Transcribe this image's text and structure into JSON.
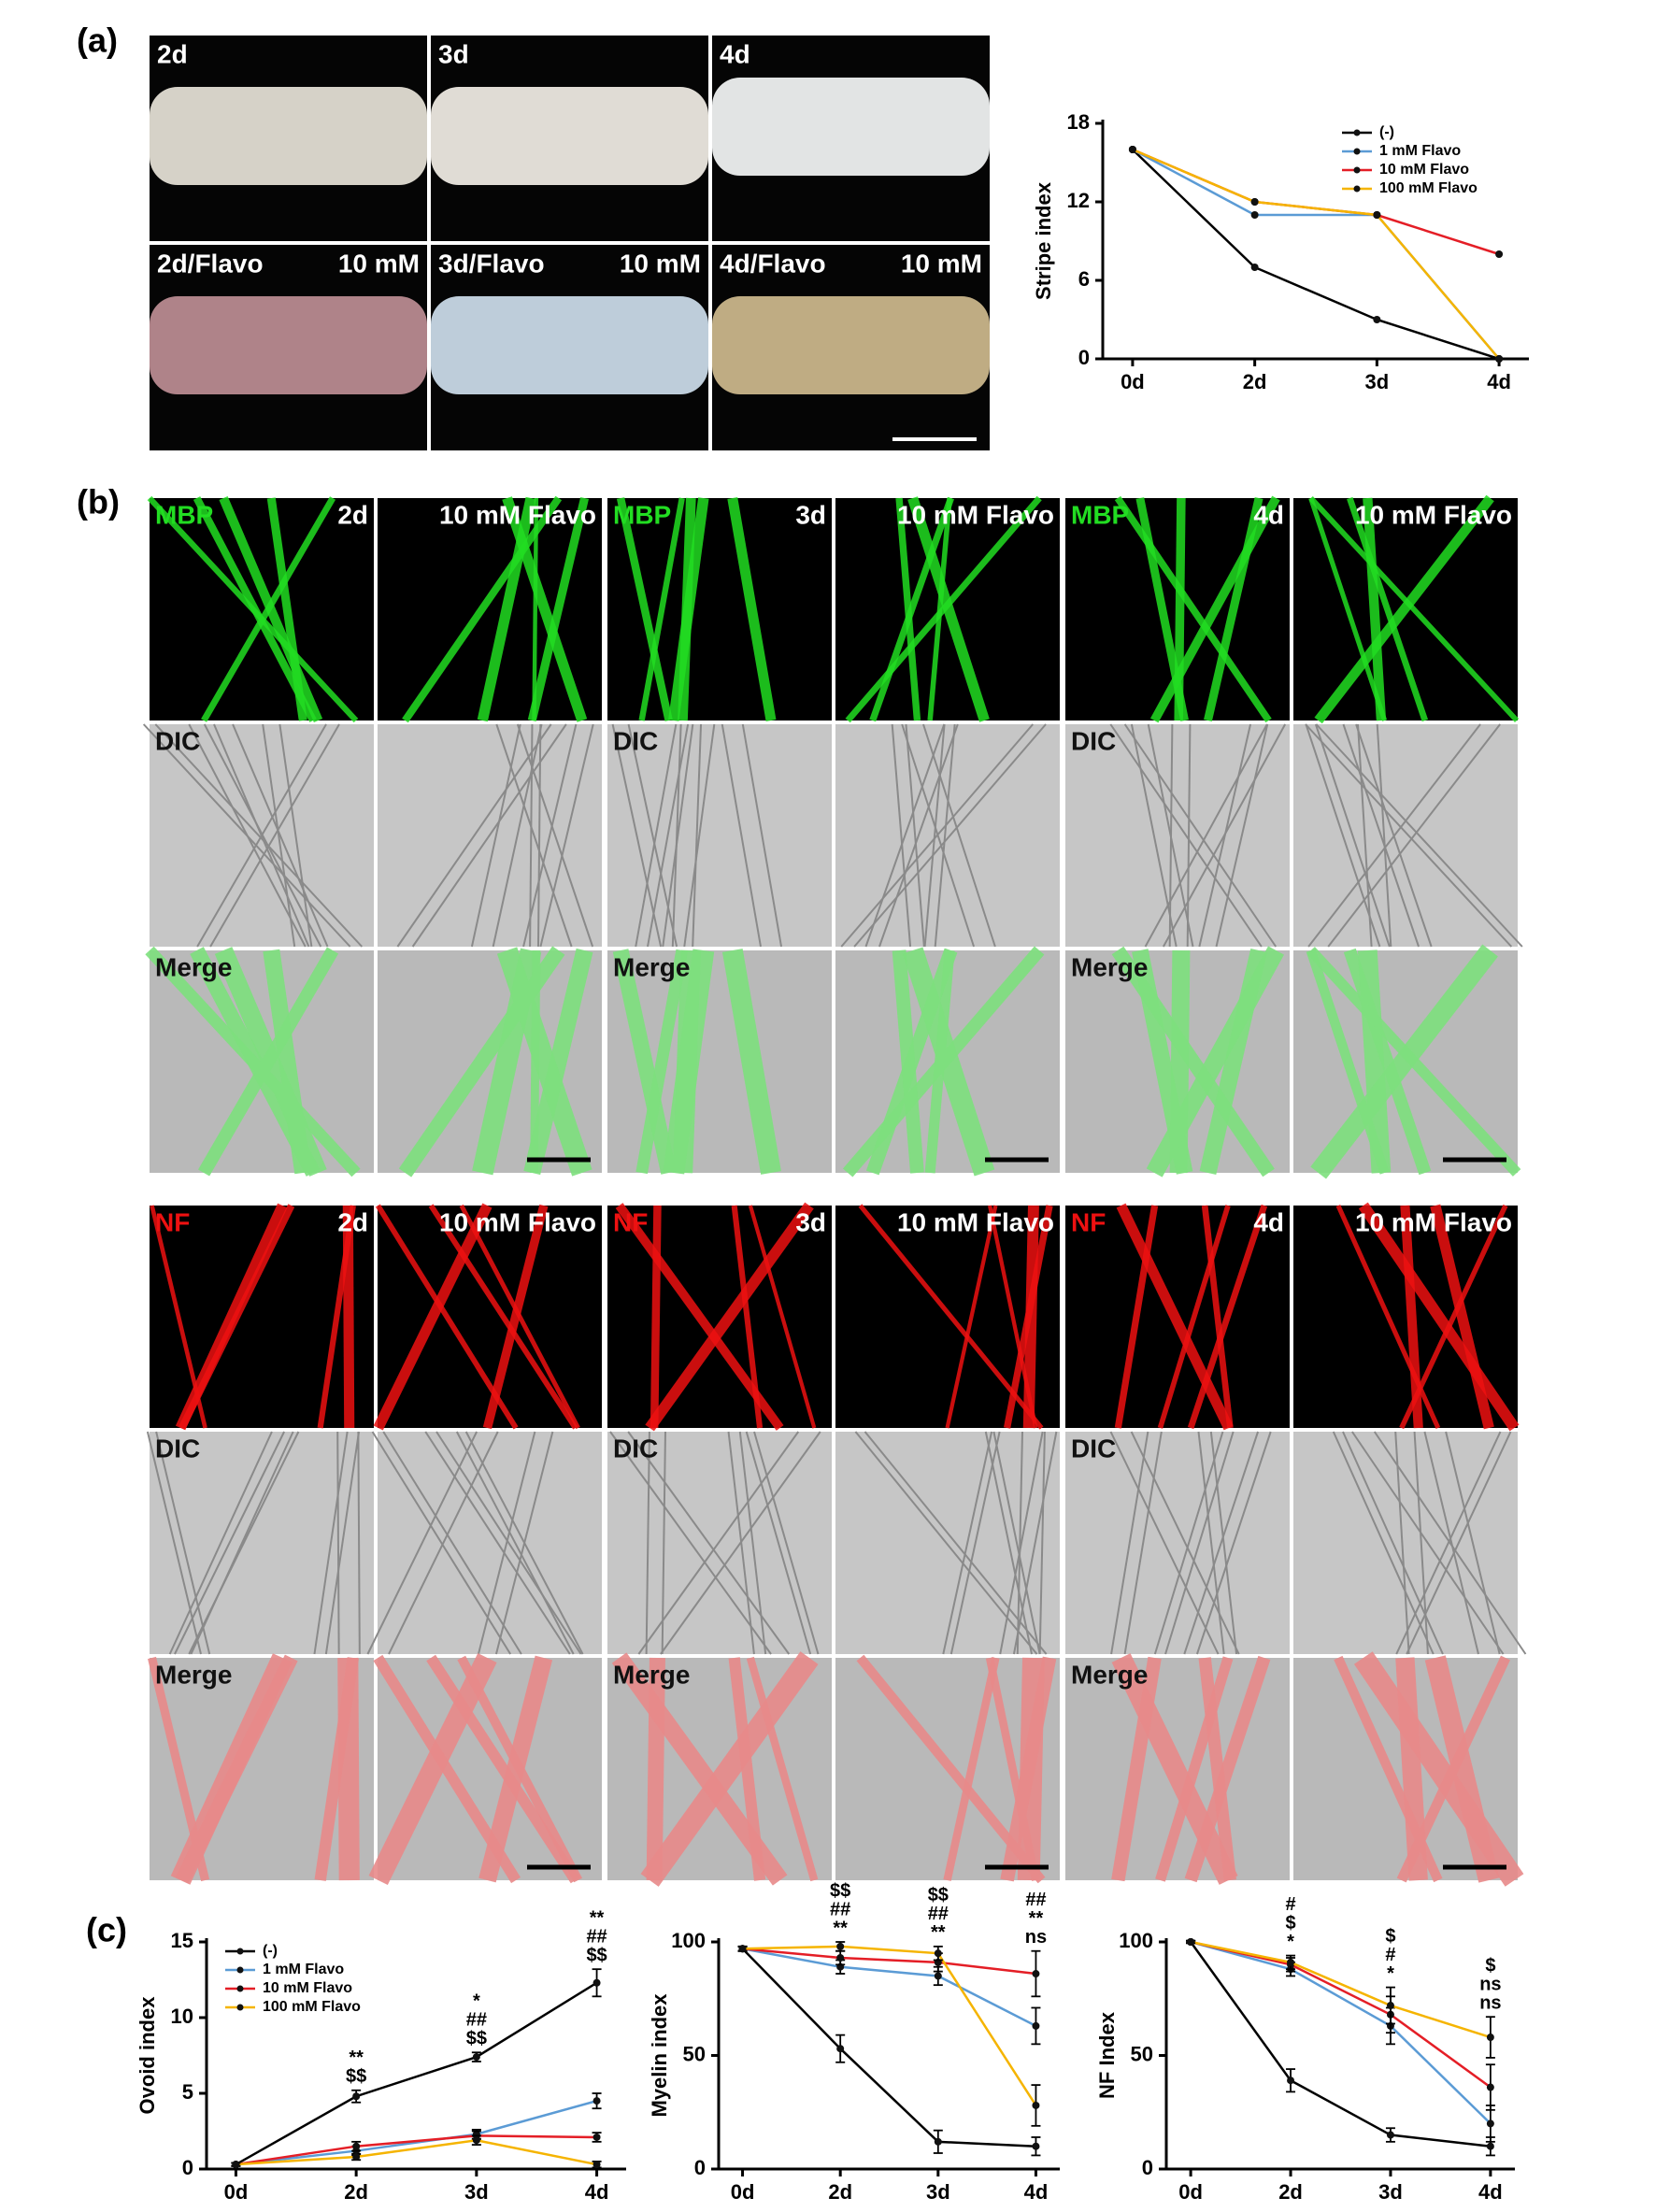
{
  "figure": {
    "panel_labels": [
      "(a)",
      "(b)",
      "(c)"
    ],
    "panel_a": {
      "days": [
        "2d",
        "3d",
        "4d"
      ],
      "flavo_labels": [
        "2d/Flavo",
        "3d/Flavo",
        "4d/Flavo"
      ],
      "dose": "10 mM"
    },
    "panel_b": {
      "days": [
        "2d",
        "3d",
        "4d"
      ],
      "treatment": "10 mM Flavo",
      "blocks": [
        {
          "stain": "MBP",
          "color": "#22dd22",
          "rows": [
            "DIC",
            "Merge"
          ]
        },
        {
          "stain": "NF",
          "color": "#ee1111",
          "rows": [
            "DIC",
            "Merge"
          ]
        }
      ]
    }
  },
  "chart_data": [
    {
      "type": "line",
      "y_label": "Stripe index",
      "categories": [
        "0d",
        "2d",
        "3d",
        "4d"
      ],
      "ylim": [
        0,
        18
      ],
      "yticks": [
        0,
        6,
        12,
        18
      ],
      "legend": "upper right",
      "series": [
        {
          "name": "(-)",
          "color": "#000000",
          "values": [
            16,
            7,
            3,
            0
          ]
        },
        {
          "name": "1 mM Flavo",
          "color": "#5b9bd5",
          "values": [
            16,
            11,
            11,
            0
          ]
        },
        {
          "name": "10 mM Flavo",
          "color": "#e41e26",
          "values": [
            16,
            12,
            11,
            8
          ]
        },
        {
          "name": "100 mM Flavo",
          "color": "#f5b400",
          "values": [
            16,
            12,
            11,
            0
          ]
        }
      ]
    },
    {
      "type": "line",
      "y_label": "Ovoid index",
      "categories": [
        "0d",
        "2d",
        "3d",
        "4d"
      ],
      "ylim": [
        0,
        15
      ],
      "yticks": [
        0,
        5,
        10,
        15
      ],
      "legend": "upper left",
      "series": [
        {
          "name": "(-)",
          "color": "#000000",
          "values": [
            0.3,
            4.8,
            7.4,
            12.3
          ],
          "errors": [
            0.1,
            0.4,
            0.3,
            0.9
          ]
        },
        {
          "name": "1 mM Flavo",
          "color": "#5b9bd5",
          "values": [
            0.3,
            1.2,
            2.3,
            4.5
          ],
          "errors": [
            0.1,
            0.3,
            0.3,
            0.5
          ]
        },
        {
          "name": "10 mM Flavo",
          "color": "#e41e26",
          "values": [
            0.3,
            1.5,
            2.2,
            2.1
          ],
          "errors": [
            0.1,
            0.3,
            0.3,
            0.3
          ]
        },
        {
          "name": "100 mM Flavo",
          "color": "#f5b400",
          "values": [
            0.3,
            0.8,
            1.9,
            0.3
          ],
          "errors": [
            0.1,
            0.2,
            0.3,
            0.2
          ]
        }
      ],
      "annotations": [
        {
          "category": "2d",
          "labels": [
            "**",
            "$$"
          ]
        },
        {
          "category": "3d",
          "labels": [
            "*",
            "##",
            "$$"
          ]
        },
        {
          "category": "4d",
          "labels": [
            "**",
            "##",
            "$$"
          ]
        }
      ]
    },
    {
      "type": "line",
      "y_label": "Myelin index",
      "categories": [
        "0d",
        "2d",
        "3d",
        "4d"
      ],
      "ylim": [
        0,
        100
      ],
      "yticks": [
        0,
        50,
        100
      ],
      "legend": "none",
      "series": [
        {
          "color": "#000000",
          "values": [
            97,
            53,
            12,
            10
          ],
          "errors": [
            1,
            6,
            5,
            4
          ]
        },
        {
          "color": "#5b9bd5",
          "values": [
            97,
            89,
            85,
            63
          ],
          "errors": [
            1,
            3,
            4,
            8
          ]
        },
        {
          "color": "#e41e26",
          "values": [
            97,
            93,
            91,
            86
          ],
          "errors": [
            1,
            3,
            4,
            10
          ]
        },
        {
          "color": "#f5b400",
          "values": [
            97,
            98,
            95,
            28
          ],
          "errors": [
            1,
            2,
            3,
            9
          ]
        }
      ],
      "annotations": [
        {
          "category": "2d",
          "labels": [
            "$$",
            "##",
            "**"
          ]
        },
        {
          "category": "3d",
          "labels": [
            "$$",
            "##",
            "**"
          ]
        },
        {
          "category": "4d",
          "labels": [
            "##",
            "**",
            "ns"
          ]
        }
      ]
    },
    {
      "type": "line",
      "y_label": "NF Index",
      "categories": [
        "0d",
        "2d",
        "3d",
        "4d"
      ],
      "ylim": [
        0,
        100
      ],
      "yticks": [
        0,
        50,
        100
      ],
      "legend": "none",
      "series": [
        {
          "color": "#000000",
          "values": [
            100,
            39,
            15,
            10
          ],
          "errors": [
            0.5,
            5,
            3,
            4
          ]
        },
        {
          "color": "#5b9bd5",
          "values": [
            100,
            88,
            63,
            20
          ],
          "errors": [
            0.5,
            3,
            8,
            8
          ]
        },
        {
          "color": "#e41e26",
          "values": [
            100,
            90,
            68,
            36
          ],
          "errors": [
            0.5,
            3,
            8,
            10
          ]
        },
        {
          "color": "#f5b400",
          "values": [
            100,
            91,
            72,
            58
          ],
          "errors": [
            0.5,
            3,
            8,
            9
          ]
        }
      ],
      "annotations": [
        {
          "category": "2d",
          "labels": [
            "#",
            "$",
            "*"
          ]
        },
        {
          "category": "3d",
          "labels": [
            "$",
            "#",
            "*"
          ]
        },
        {
          "category": "4d",
          "labels": [
            "$",
            "ns",
            "ns"
          ]
        }
      ]
    }
  ]
}
